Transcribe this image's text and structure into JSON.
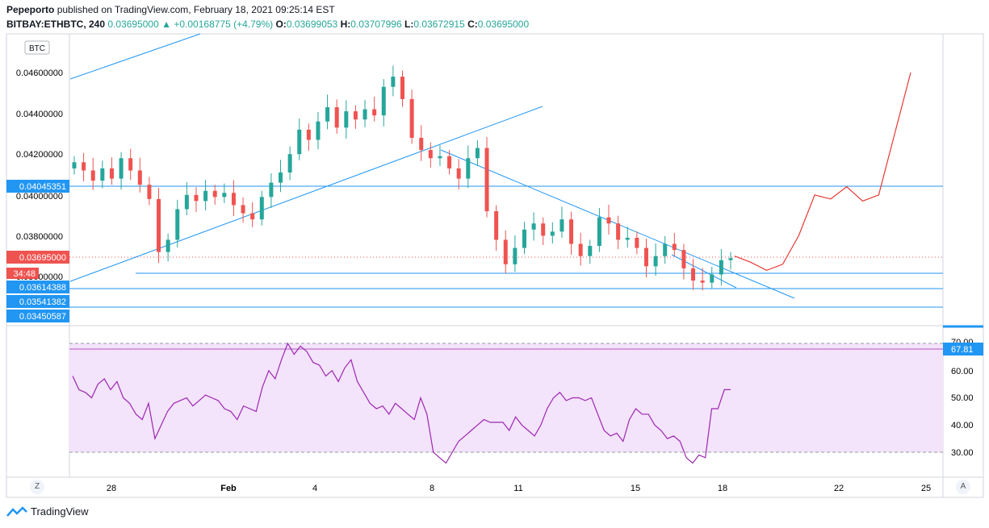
{
  "header": {
    "publisher": "Pepeporto",
    "published_text": "published on TradingView.com, February 18, 2021 09:25:14 EST",
    "symbol": "BITBAY:ETHBTC, 240",
    "last": "0.03695000",
    "change_arrow": "▲",
    "change": "+0.00168775 (+4.79%)",
    "o_label": "O:",
    "o": "0.03699053",
    "h_label": "H:",
    "h": "0.03707996",
    "l_label": "L:",
    "l": "0.03672915",
    "c_label": "C:",
    "c": "0.03695000"
  },
  "currency_badge": "BTC",
  "footer": {
    "brand": "TradingView",
    "logo_icon": "tradingview-logo-icon"
  },
  "scale_buttons": {
    "left": "Z",
    "right": "A"
  },
  "colors": {
    "up": "#26a69a",
    "down": "#ef5350",
    "line": "#2196f3",
    "forecast": "#e53935",
    "rsi": "#9c27b0",
    "rsi_fill": "#f3e3fb"
  },
  "chart_data": [
    {
      "type": "candlestick",
      "title": "BITBAY:ETHBTC, 240",
      "y_axis_ticks": [
        "0.04600000",
        "0.04400000",
        "0.04200000",
        "0.04000000",
        "0.03800000",
        "0.03600000"
      ],
      "ylim": [
        0.0345,
        0.0465
      ],
      "x_axis_ticks": [
        "28",
        "Feb",
        "4",
        "8",
        "11",
        "15",
        "18",
        "22",
        "25"
      ],
      "price_labels": [
        {
          "text": "0.04045351",
          "value": 0.04045351,
          "kind": "horizontal-line"
        },
        {
          "text": "0.03695000",
          "value": 0.03695,
          "kind": "last-price"
        },
        {
          "text": "34:48",
          "kind": "countdown"
        },
        {
          "text": "0.03614388",
          "value": 0.03614388,
          "kind": "horizontal-line"
        },
        {
          "text": "0.03541382",
          "value": 0.03541382,
          "kind": "horizontal-line"
        },
        {
          "text": "0.03450587",
          "value": 0.03450587,
          "kind": "horizontal-line"
        }
      ],
      "close_path_approx": [
        0.0416,
        0.0412,
        0.0407,
        0.0413,
        0.0408,
        0.0418,
        0.0412,
        0.0405,
        0.0398,
        0.0372,
        0.0378,
        0.0393,
        0.04,
        0.0397,
        0.0402,
        0.0399,
        0.0401,
        0.0395,
        0.0391,
        0.0388,
        0.0399,
        0.0406,
        0.0411,
        0.042,
        0.0432,
        0.0427,
        0.0436,
        0.0443,
        0.0433,
        0.0441,
        0.0437,
        0.0442,
        0.0439,
        0.0453,
        0.0458,
        0.0447,
        0.0428,
        0.0422,
        0.0418,
        0.0419,
        0.0413,
        0.0408,
        0.0418,
        0.0423,
        0.0392,
        0.0378,
        0.0366,
        0.0374,
        0.0383,
        0.0386,
        0.038,
        0.0382,
        0.0388,
        0.0376,
        0.037,
        0.0375,
        0.0389,
        0.0386,
        0.0378,
        0.0379,
        0.0374,
        0.0365,
        0.037,
        0.0376,
        0.0373,
        0.0364,
        0.0358,
        0.0357,
        0.0361,
        0.0368,
        0.0369
      ],
      "forecast_path_approx": [
        0.037,
        0.0367,
        0.0363,
        0.0366,
        0.038,
        0.04,
        0.0398,
        0.0404,
        0.0397,
        0.04,
        0.043,
        0.046
      ]
    },
    {
      "type": "line",
      "title": "",
      "y_axis_ticks": [
        "70.00",
        "60.00",
        "50.00",
        "40.00",
        "30.00"
      ],
      "ylim": [
        25,
        72
      ],
      "current_label": "67.81",
      "band": [
        30,
        70
      ],
      "values": [
        58,
        53,
        52,
        50,
        55,
        57,
        53,
        56,
        50,
        48,
        44,
        42,
        48,
        35,
        40,
        45,
        48,
        49,
        50,
        47,
        49,
        51,
        50,
        49,
        46,
        45,
        42,
        47,
        46,
        45,
        54,
        60,
        57,
        64,
        70,
        66,
        69,
        67,
        63,
        62,
        58,
        60,
        56,
        61,
        64,
        56,
        52,
        48,
        46,
        47,
        44,
        48,
        46,
        44,
        42,
        50,
        44,
        30,
        28,
        26,
        30,
        34,
        36,
        38,
        40,
        42,
        41,
        41,
        41,
        38,
        43,
        40,
        38,
        36,
        40,
        46,
        50,
        52,
        49,
        50,
        50,
        49,
        50,
        44,
        38,
        36,
        37,
        34,
        42,
        46,
        44,
        44,
        40,
        38,
        35,
        36,
        34,
        28,
        26,
        29,
        28,
        46,
        46,
        53,
        53
      ]
    }
  ]
}
